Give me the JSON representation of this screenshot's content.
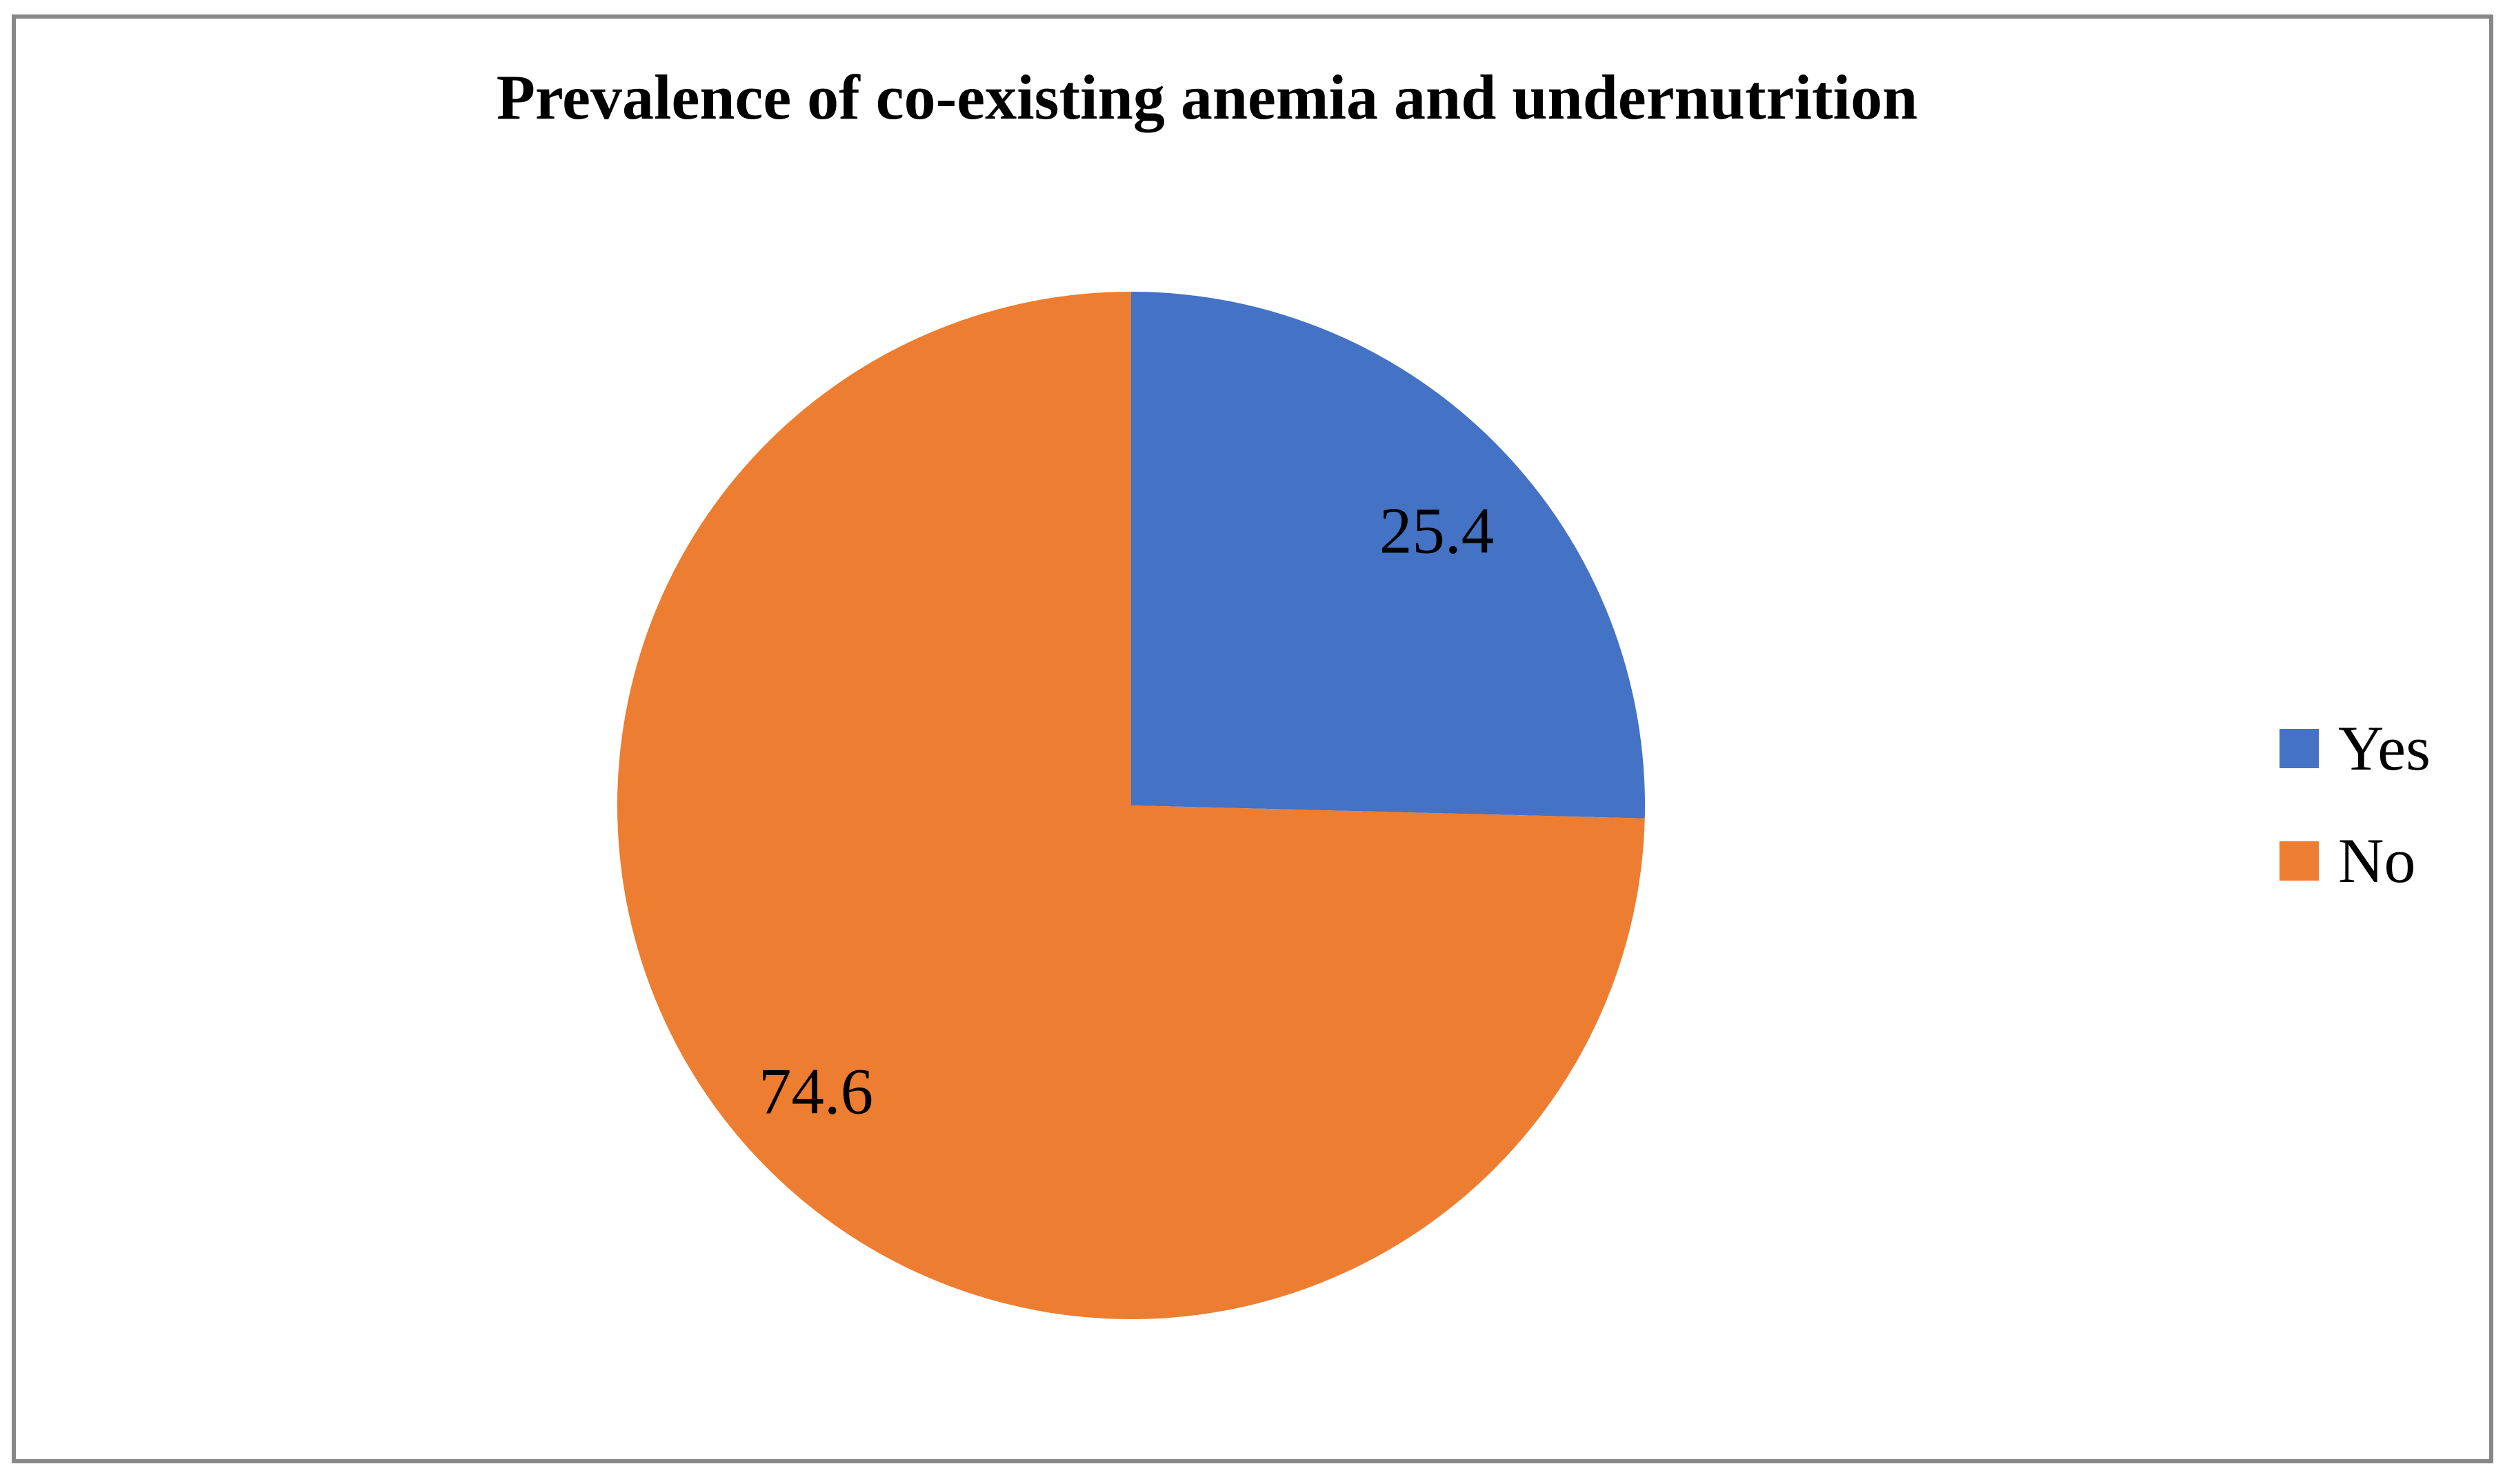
{
  "title": "Prevalence of co-existing anemia and undernutrition",
  "chart_data": {
    "type": "pie",
    "title": "Prevalence of co-existing anemia and undernutrition",
    "categories": [
      "Yes",
      "No"
    ],
    "values": [
      25.4,
      74.6
    ],
    "data_labels": [
      "25.4",
      "74.6"
    ],
    "colors": [
      "#4472C4",
      "#ED7D31"
    ],
    "start_angle": 0,
    "direction": "clockwise",
    "legend_position": "right",
    "legend_entries": [
      "Yes",
      "No"
    ]
  },
  "legend": {
    "items": [
      {
        "label": "Yes",
        "color": "#4472C4"
      },
      {
        "label": "No",
        "color": "#ED7D31"
      }
    ]
  },
  "colors": {
    "slice_yes": "#4472C4",
    "slice_no": "#ED7D31",
    "frame_border": "#878787",
    "text": "#000000",
    "background": "#FFFFFF"
  }
}
